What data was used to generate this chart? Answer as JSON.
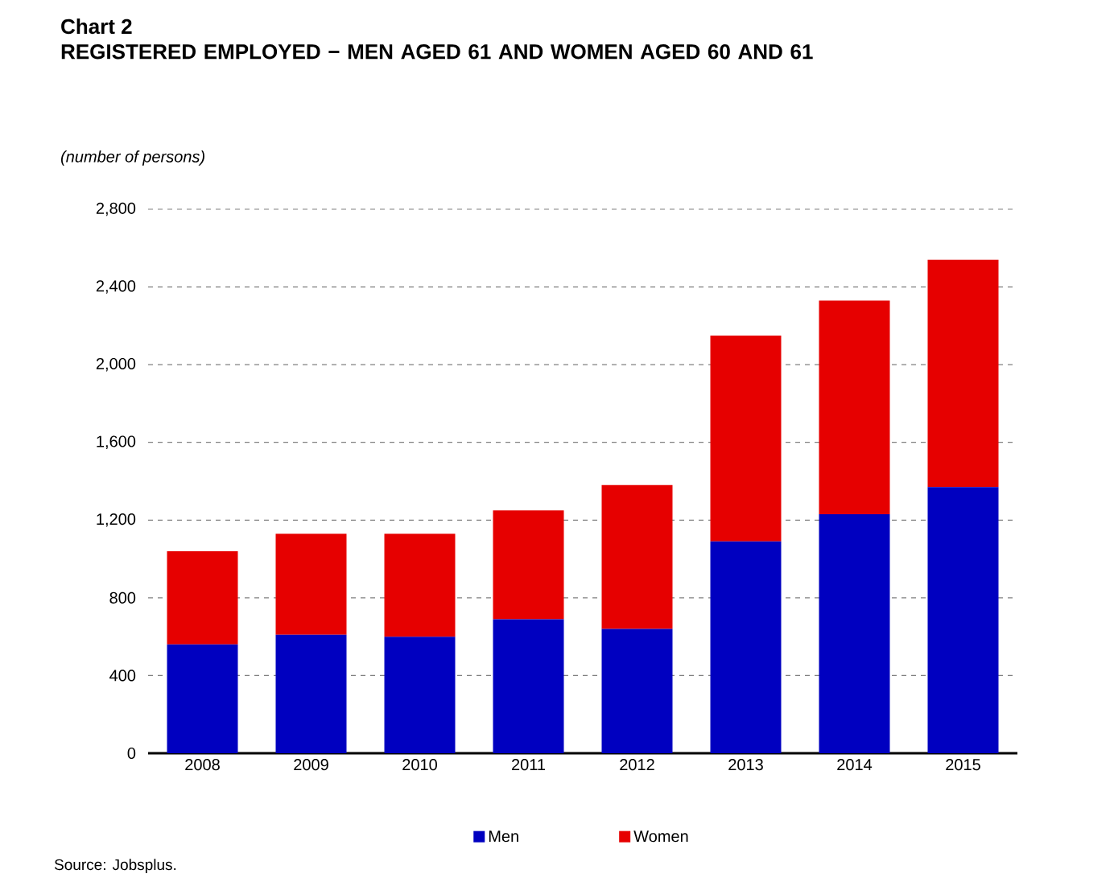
{
  "chart_data": {
    "type": "bar",
    "title": "Chart 2",
    "subtitle": "REGISTERED EMPLOYED − MEN AGED 61 AND WOMEN AGED 60 AND 61",
    "ylabel": "(number of persons)",
    "categories": [
      "2008",
      "2009",
      "2010",
      "2011",
      "2012",
      "2013",
      "2014",
      "2015"
    ],
    "series": [
      {
        "name": "Men",
        "color": "#0000c0",
        "values": [
          560,
          610,
          600,
          690,
          640,
          1090,
          1230,
          1370
        ]
      },
      {
        "name": "Women",
        "color": "#e60000",
        "values": [
          480,
          520,
          530,
          560,
          740,
          1060,
          1100,
          1170
        ]
      }
    ],
    "stacked": true,
    "ylim": [
      0,
      2800
    ],
    "yticks": [
      0,
      400,
      800,
      {
        "value": 1200,
        "label": "1,200"
      },
      {
        "value": 1600,
        "label": "1,600"
      },
      {
        "value": 2000,
        "label": "2,000"
      },
      {
        "value": 2400,
        "label": "2,400"
      },
      {
        "value": 2800,
        "label": "2,800"
      }
    ],
    "grid": "y",
    "legend": "bottom",
    "annotations": [
      "Source: Jobsplus."
    ]
  }
}
